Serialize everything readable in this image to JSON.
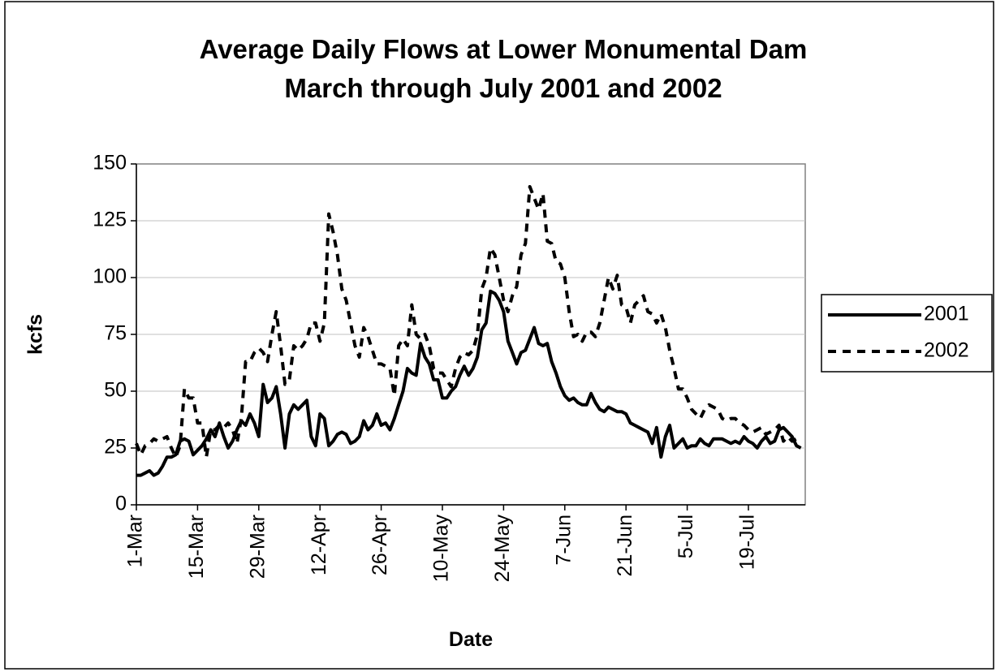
{
  "chart_data": {
    "type": "line",
    "title": [
      "Average Daily Flows at Lower Monumental Dam",
      "March through July 2001 and 2002"
    ],
    "x_label": "Date",
    "y_label": "kcfs",
    "categories": [
      "1-Mar",
      null,
      null,
      null,
      null,
      null,
      null,
      null,
      null,
      null,
      null,
      null,
      null,
      null,
      "15-Mar",
      null,
      null,
      null,
      null,
      null,
      null,
      null,
      null,
      null,
      null,
      null,
      null,
      null,
      "29-Mar",
      null,
      null,
      null,
      null,
      null,
      null,
      null,
      null,
      null,
      null,
      null,
      null,
      null,
      "12-Apr",
      null,
      null,
      null,
      null,
      null,
      null,
      null,
      null,
      null,
      null,
      null,
      null,
      null,
      "26-Apr",
      null,
      null,
      null,
      null,
      null,
      null,
      null,
      null,
      null,
      null,
      null,
      null,
      null,
      "10-May",
      null,
      null,
      null,
      null,
      null,
      null,
      null,
      null,
      null,
      null,
      null,
      null,
      null,
      "24-May",
      null,
      null,
      null,
      null,
      null,
      null,
      null,
      null,
      null,
      null,
      null,
      null,
      null,
      "7-Jun",
      null,
      null,
      null,
      null,
      null,
      null,
      null,
      null,
      null,
      null,
      null,
      null,
      null,
      "21-Jun",
      null,
      null,
      null,
      null,
      null,
      null,
      null,
      null,
      null,
      null,
      null,
      null,
      null,
      "5-Jul",
      null,
      null,
      null,
      null,
      null,
      null,
      null,
      null,
      null,
      null,
      null,
      null,
      null,
      "19-Jul",
      null,
      null,
      null,
      null,
      null,
      null,
      null,
      null,
      null,
      null,
      null,
      null
    ],
    "series": [
      {
        "name": "2001",
        "color": "#000000",
        "style": "solid",
        "values": [
          13,
          13,
          14,
          15,
          13,
          14,
          17,
          21,
          21,
          22,
          28,
          29,
          28,
          22,
          24,
          26,
          29,
          33,
          30,
          36,
          30,
          25,
          28,
          33,
          37,
          35,
          40,
          36,
          30,
          53,
          45,
          47,
          52,
          40,
          25,
          40,
          44,
          42,
          44,
          46,
          30,
          26,
          40,
          38,
          26,
          28,
          31,
          32,
          31,
          27,
          28,
          30,
          37,
          33,
          35,
          40,
          35,
          36,
          33,
          38,
          44,
          50,
          60,
          58,
          57,
          71,
          65,
          62,
          55,
          55,
          47,
          47,
          50,
          52,
          57,
          61,
          57,
          60,
          65,
          77,
          80,
          94,
          93,
          90,
          85,
          72,
          67,
          62,
          67,
          68,
          73,
          78,
          71,
          70,
          71,
          63,
          58,
          52,
          48,
          46,
          47,
          45,
          44,
          44,
          49,
          45,
          42,
          41,
          43,
          42,
          41,
          41,
          40,
          36,
          35,
          34,
          33,
          32,
          27,
          34,
          21,
          30,
          35,
          25,
          27,
          29,
          25,
          26,
          26,
          29,
          27,
          26,
          29,
          29,
          29,
          28,
          27,
          28,
          27,
          30,
          28,
          27,
          25,
          28,
          30,
          27,
          28,
          33,
          34,
          32,
          30,
          26,
          25
        ]
      },
      {
        "name": "2002",
        "color": "#000000",
        "style": "dashed",
        "values": [
          27,
          22,
          26,
          27,
          29,
          28,
          29,
          30,
          25,
          21,
          26,
          51,
          47,
          47,
          36,
          36,
          21,
          33,
          33,
          35,
          34,
          36,
          33,
          27,
          38,
          63,
          63,
          67,
          69,
          67,
          63,
          75,
          85,
          70,
          53,
          55,
          70,
          68,
          70,
          73,
          80,
          80,
          72,
          80,
          128,
          120,
          110,
          95,
          90,
          80,
          70,
          65,
          78,
          74,
          68,
          62,
          62,
          61,
          60,
          48,
          70,
          73,
          70,
          88,
          75,
          73,
          75,
          70,
          60,
          58,
          58,
          55,
          52,
          60,
          65,
          67,
          66,
          68,
          75,
          95,
          100,
          113,
          110,
          100,
          90,
          85,
          92,
          96,
          110,
          115,
          140,
          135,
          130,
          137,
          116,
          115,
          107,
          106,
          100,
          85,
          74,
          75,
          72,
          76,
          76,
          74,
          80,
          90,
          100,
          95,
          101,
          88,
          87,
          80,
          88,
          90,
          92,
          85,
          84,
          80,
          84,
          78,
          68,
          60,
          51,
          51,
          47,
          42,
          40,
          38,
          42,
          44,
          43,
          42,
          38,
          37,
          38,
          38,
          36,
          35,
          33,
          32,
          33,
          34,
          31,
          32,
          33,
          35,
          28,
          30,
          28,
          29,
          30
        ]
      }
    ],
    "ylim": [
      0,
      150
    ],
    "yticks": [
      0,
      25,
      50,
      75,
      100,
      125,
      150
    ],
    "grid": true,
    "legend": "right"
  }
}
